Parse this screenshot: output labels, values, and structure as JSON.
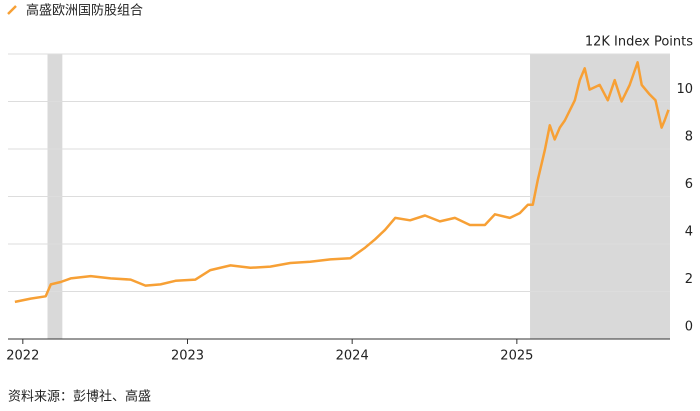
{
  "chart_data": {
    "type": "line",
    "series": [
      {
        "name": "高盛欧洲国防股组合",
        "color": "#f7a035",
        "x": [
          2021.952,
          2022.048,
          2022.139,
          2022.17,
          2022.23,
          2022.291,
          2022.412,
          2022.533,
          2022.655,
          2022.745,
          2022.836,
          2022.927,
          2023.048,
          2023.139,
          2023.261,
          2023.382,
          2023.503,
          2023.624,
          2023.745,
          2023.867,
          2023.988,
          2024.079,
          2024.139,
          2024.2,
          2024.261,
          2024.352,
          2024.442,
          2024.533,
          2024.624,
          2024.715,
          2024.806,
          2024.867,
          2024.958,
          2025.018,
          2025.067,
          2025.097,
          2025.127,
          2025.17,
          2025.2,
          2025.23,
          2025.261,
          2025.291,
          2025.352,
          2025.382,
          2025.412,
          2025.442,
          2025.503,
          2025.552,
          2025.594,
          2025.636,
          2025.685,
          2025.733,
          2025.758,
          2025.806,
          2025.842,
          2025.879,
          2025.897,
          2025.921
        ],
        "values": [
          1.56,
          1.7,
          1.8,
          2.3,
          2.4,
          2.55,
          2.65,
          2.55,
          2.5,
          2.25,
          2.3,
          2.45,
          2.5,
          2.9,
          3.1,
          3.0,
          3.05,
          3.2,
          3.25,
          3.35,
          3.4,
          3.85,
          4.2,
          4.6,
          5.1,
          5.0,
          5.2,
          4.95,
          5.1,
          4.8,
          4.8,
          5.25,
          5.1,
          5.3,
          5.65,
          5.65,
          6.7,
          7.95,
          9.0,
          8.4,
          8.9,
          9.2,
          10.05,
          10.9,
          11.4,
          10.5,
          10.7,
          10.05,
          10.9,
          10.0,
          10.7,
          11.65,
          10.7,
          10.3,
          10.05,
          8.9,
          9.2,
          9.65
        ]
      }
    ],
    "xlim": [
      2021.91,
      2025.93
    ],
    "xticks": [
      2022,
      2023,
      2024,
      2025
    ],
    "ylim": [
      0,
      12
    ],
    "yticks": [
      0,
      2,
      4,
      6,
      8,
      10,
      {
        "value": 12,
        "label": "12K Index Points"
      }
    ],
    "grid": true,
    "shaded_ranges": [
      [
        2022.15,
        2022.24
      ],
      [
        2025.08,
        2025.93
      ]
    ],
    "source": "资料来源：彭博社、高盛"
  }
}
